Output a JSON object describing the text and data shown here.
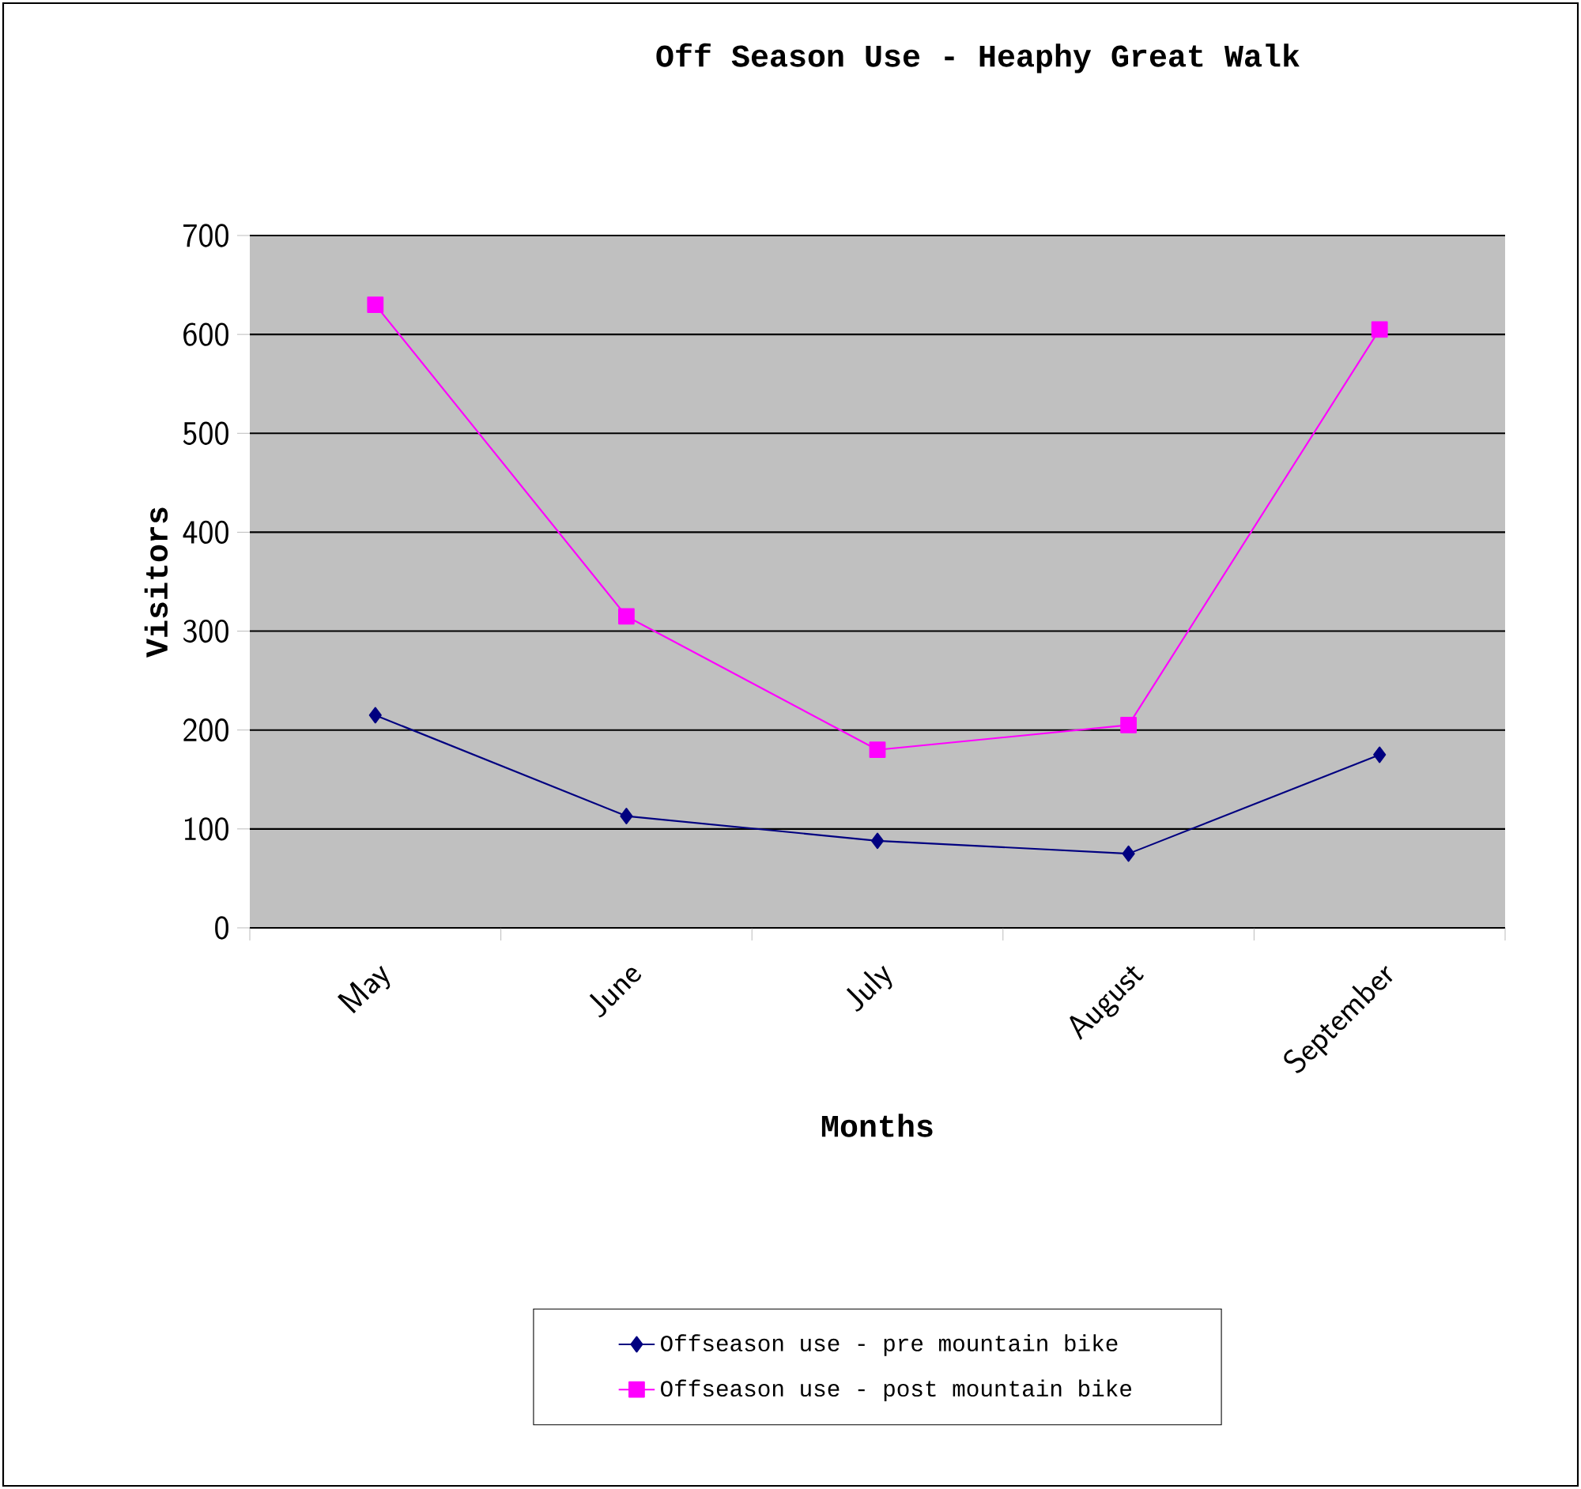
{
  "chart_data": {
    "type": "line",
    "title": "Off Season Use - Heaphy Great Walk",
    "xlabel": "Months",
    "ylabel": "Visitors",
    "categories": [
      "May",
      "June",
      "July",
      "August",
      "September"
    ],
    "series": [
      {
        "name": "Offseason use - pre mountain bike",
        "color": "#000080",
        "marker": "diamond",
        "values": [
          215,
          113,
          88,
          75,
          175
        ]
      },
      {
        "name": "Offseason use - post mountain bike",
        "color": "#ff00ff",
        "marker": "square",
        "values": [
          630,
          315,
          180,
          205,
          605
        ]
      }
    ],
    "ylim": [
      0,
      700
    ],
    "yticks": [
      0,
      100,
      200,
      300,
      400,
      500,
      600,
      700
    ],
    "grid": "y",
    "legend": "bottom",
    "line_style": "solid"
  }
}
